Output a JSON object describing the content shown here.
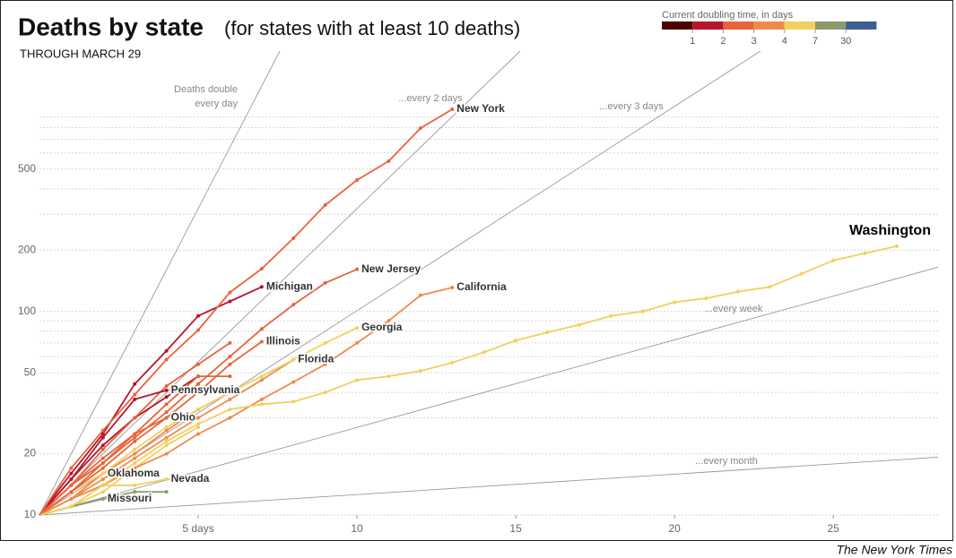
{
  "chart_data": {
    "type": "line",
    "title": "Deaths by state",
    "subtitle": "(for states with at least 10 deaths)",
    "note": "THROUGH MARCH 29",
    "source": "The New York Times",
    "log_y": true,
    "grid": true,
    "xlim": [
      0,
      28.3
    ],
    "ylim": [
      10,
      1900
    ],
    "yticks": [
      10,
      20,
      50,
      100,
      200,
      500
    ],
    "minor_yticks": [
      30,
      40,
      60,
      70,
      80,
      90,
      300,
      400,
      600,
      700,
      800,
      900
    ],
    "xticks": [
      {
        "value": 5,
        "label": "5 days"
      },
      10,
      15,
      20,
      25
    ],
    "legend": {
      "title": "Current doubling time, in days",
      "colors": [
        "#4a0404",
        "#b5162c",
        "#e8643c",
        "#f08a4b",
        "#f2cf5f",
        "#8a9a6a",
        "#3d5f8f"
      ],
      "breaks": [
        1,
        2,
        3,
        4,
        7,
        30
      ]
    },
    "reference_lines": [
      {
        "doubling_days": 1,
        "label": [
          "Deaths double",
          "every day"
        ]
      },
      {
        "doubling_days": 2,
        "label": [
          "...every 2 days"
        ]
      },
      {
        "doubling_days": 3,
        "label": [
          "...every 3 days"
        ]
      },
      {
        "doubling_days": 7,
        "label": [
          "...every week"
        ]
      },
      {
        "doubling_days": 30,
        "label": [
          "...every month"
        ]
      }
    ],
    "series": [
      {
        "name": "New York",
        "color": "#e8643c",
        "x": [
          0,
          1,
          2,
          3,
          4,
          5,
          6,
          7,
          8,
          9,
          10,
          11,
          12,
          13
        ],
        "values": [
          10,
          17,
          26,
          39,
          58,
          81,
          124,
          162,
          229,
          333,
          442,
          547,
          794,
          984
        ]
      },
      {
        "name": "Washington",
        "color": "#f2cf5f",
        "x": [
          0,
          1,
          2,
          3,
          4,
          5,
          6,
          7,
          8,
          9,
          10,
          11,
          12,
          13,
          14,
          15,
          16,
          17,
          18,
          19,
          20,
          21,
          22,
          23,
          24,
          25,
          26,
          27
        ],
        "values": [
          10,
          11,
          14,
          18,
          23,
          28,
          33,
          35,
          36,
          40,
          46,
          48,
          51,
          56,
          63,
          72,
          79,
          86,
          95,
          100,
          111,
          116,
          125,
          132,
          153,
          178,
          193,
          209
        ]
      },
      {
        "name": "New Jersey",
        "color": "#e8643c",
        "x": [
          0,
          1,
          2,
          3,
          4,
          5,
          6,
          7,
          8,
          9,
          10
        ],
        "values": [
          10,
          14,
          18,
          24,
          32,
          44,
          60,
          82,
          108,
          138,
          161
        ]
      },
      {
        "name": "California",
        "color": "#f08a4b",
        "x": [
          0,
          1,
          2,
          3,
          4,
          5,
          6,
          7,
          8,
          9,
          10,
          11,
          12,
          13
        ],
        "values": [
          10,
          12,
          14,
          17,
          20,
          25,
          30,
          37,
          45,
          55,
          70,
          90,
          120,
          131
        ]
      },
      {
        "name": "Michigan",
        "color": "#b5162c",
        "x": [
          0,
          1,
          2,
          3,
          4,
          5,
          6,
          7
        ],
        "values": [
          10,
          16,
          25,
          44,
          64,
          95,
          112,
          132
        ]
      },
      {
        "name": "Illinois",
        "color": "#e8643c",
        "x": [
          0,
          1,
          2,
          3,
          4,
          5,
          6,
          7
        ],
        "values": [
          10,
          13,
          17,
          23,
          30,
          40,
          55,
          71
        ]
      },
      {
        "name": "Georgia",
        "color": "#f2cf5f",
        "x": [
          0,
          1,
          2,
          3,
          4,
          5,
          6,
          7,
          8,
          9,
          10
        ],
        "values": [
          10,
          13,
          16,
          21,
          27,
          33,
          40,
          48,
          58,
          70,
          83
        ]
      },
      {
        "name": "Florida",
        "color": "#f08a4b",
        "x": [
          0,
          1,
          2,
          3,
          4,
          5,
          6,
          7,
          8
        ],
        "values": [
          10,
          12,
          15,
          19,
          24,
          30,
          37,
          46,
          58
        ]
      },
      {
        "name": "Pennsylvania",
        "color": "#b5162c",
        "x": [
          0,
          1,
          2,
          3,
          4
        ],
        "values": [
          10,
          15,
          24,
          37,
          41
        ]
      },
      {
        "name": "Ohio",
        "color": "#e8643c",
        "x": [
          0,
          1,
          2,
          3,
          4
        ],
        "values": [
          10,
          14,
          19,
          25,
          30
        ]
      },
      {
        "name": "Oklahoma",
        "color": "#f08a4b",
        "x": [
          0,
          1,
          2
        ],
        "values": [
          10,
          13,
          16
        ]
      },
      {
        "name": "Nevada",
        "color": "#f2cf5f",
        "x": [
          0,
          1,
          2,
          3,
          4
        ],
        "values": [
          10,
          12,
          14,
          14,
          15
        ]
      },
      {
        "name": "Missouri",
        "color": "#8a9a6a",
        "x": [
          0,
          1,
          2
        ],
        "values": [
          10,
          11,
          12
        ]
      },
      {
        "color": "#8a9a6a",
        "x": [
          0,
          1,
          2,
          3,
          4
        ],
        "values": [
          10,
          11,
          12,
          13,
          13
        ]
      },
      {
        "color": "#e8643c",
        "x": [
          0,
          1,
          2,
          3,
          4,
          5,
          6
        ],
        "values": [
          10,
          14,
          21,
          30,
          43,
          55,
          70
        ]
      },
      {
        "color": "#e8643c",
        "x": [
          0,
          1,
          2,
          3,
          4,
          5,
          6
        ],
        "values": [
          10,
          13,
          18,
          25,
          35,
          48,
          48
        ]
      },
      {
        "color": "#f08a4b",
        "x": [
          0,
          1,
          2,
          3,
          4,
          5,
          6
        ],
        "values": [
          10,
          12,
          16,
          20,
          26,
          33,
          40
        ]
      },
      {
        "color": "#b5162c",
        "x": [
          0,
          1,
          2,
          3,
          4,
          5
        ],
        "values": [
          10,
          15,
          22,
          30,
          38,
          48
        ]
      },
      {
        "color": "#f2cf5f",
        "x": [
          0,
          1,
          2,
          3,
          4,
          5
        ],
        "values": [
          10,
          11,
          13,
          17,
          22,
          27
        ]
      }
    ]
  }
}
